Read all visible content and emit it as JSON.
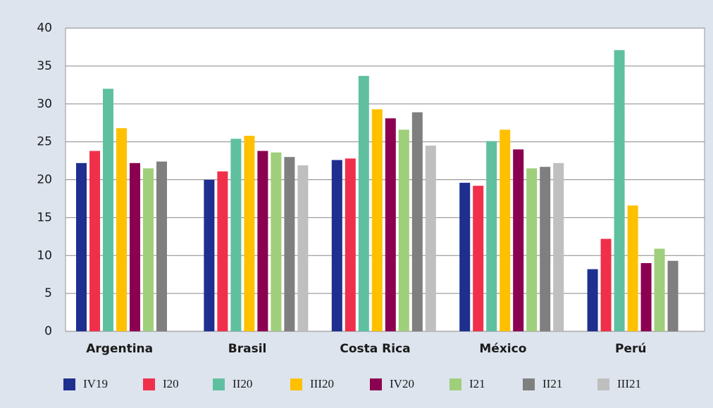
{
  "chart_data": {
    "type": "bar",
    "categories": [
      "Argentina",
      "Brasil",
      "Costa Rica",
      "México",
      "Perú"
    ],
    "series": [
      {
        "name": "IV19",
        "color": "#1f2f8f",
        "values": [
          22.2,
          20,
          22.6,
          19.6,
          8.2
        ]
      },
      {
        "name": "I20",
        "color": "#f0304a",
        "values": [
          23.8,
          21.1,
          22.8,
          19.2,
          12.2
        ]
      },
      {
        "name": "II20",
        "color": "#5fc0a0",
        "values": [
          32,
          25.4,
          33.7,
          25.1,
          37.1
        ]
      },
      {
        "name": "III20",
        "color": "#ffc000",
        "values": [
          26.8,
          25.8,
          29.3,
          26.6,
          16.6
        ]
      },
      {
        "name": "IV20",
        "color": "#8b0050",
        "values": [
          22.2,
          23.8,
          28.1,
          24,
          9
        ]
      },
      {
        "name": "I21",
        "color": "#9fcf7a",
        "values": [
          21.5,
          23.6,
          26.6,
          21.5,
          10.9
        ]
      },
      {
        "name": "II21",
        "color": "#7f7f7f",
        "values": [
          22.4,
          23,
          28.9,
          21.7,
          9.3
        ]
      },
      {
        "name": "III21",
        "color": "#bfbfbf",
        "values": [
          null,
          21.9,
          24.5,
          22.2,
          null
        ]
      }
    ],
    "ylim": [
      0,
      40
    ],
    "yticks": [
      0,
      5,
      10,
      15,
      20,
      25,
      30,
      35,
      40
    ],
    "grid": true
  }
}
